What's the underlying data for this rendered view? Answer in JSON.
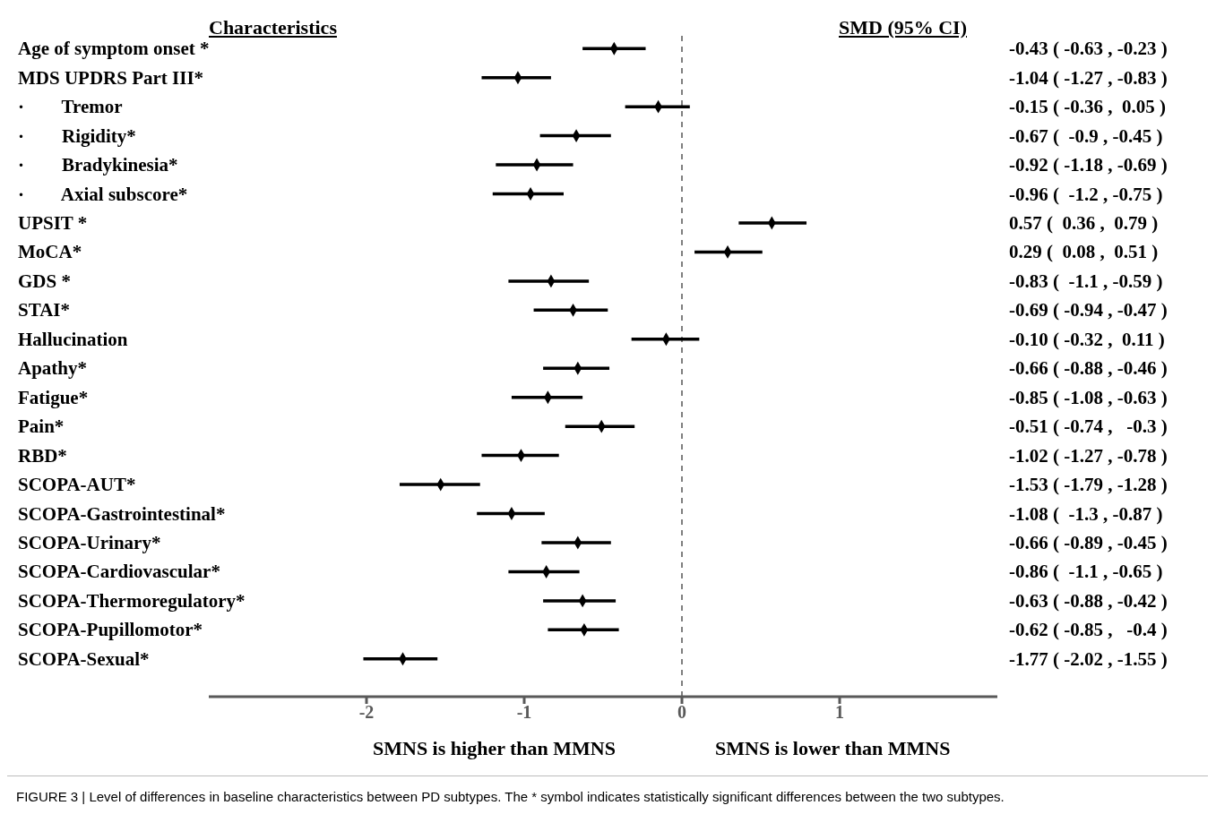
{
  "chart_data": {
    "type": "scatter",
    "orientation": "horizontal",
    "categories": [
      "Age of symptom onset *",
      "MDS UPDRS Part III*",
      "·        Tremor",
      "·        Rigidity*",
      "·        Bradykinesia*",
      "·        Axial subscore*",
      "UPSIT *",
      "MoCA*",
      "GDS *",
      "STAI*",
      "Hallucination",
      "Apathy*",
      "Fatigue*",
      "Pain*",
      "RBD*",
      "SCOPA-AUT*",
      "SCOPA-Gastrointestinal*",
      "SCOPA-Urinary*",
      "SCOPA-Cardiovascular*",
      "SCOPA-Thermoregulatory*",
      "SCOPA-Pupillomotor*",
      "SCOPA-Sexual*"
    ],
    "values": [
      -0.43,
      -1.04,
      -0.15,
      -0.67,
      -0.92,
      -0.96,
      0.57,
      0.29,
      -0.83,
      -0.69,
      -0.1,
      -0.66,
      -0.85,
      -0.51,
      -1.02,
      -1.53,
      -1.08,
      -0.66,
      -0.86,
      -0.63,
      -0.62,
      -1.77
    ],
    "errors": [
      [
        -0.63,
        -0.23
      ],
      [
        -1.27,
        -0.83
      ],
      [
        -0.36,
        0.05
      ],
      [
        -0.9,
        -0.45
      ],
      [
        -1.18,
        -0.69
      ],
      [
        -1.2,
        -0.75
      ],
      [
        0.36,
        0.79
      ],
      [
        0.08,
        0.51
      ],
      [
        -1.1,
        -0.59
      ],
      [
        -0.94,
        -0.47
      ],
      [
        -0.32,
        0.11
      ],
      [
        -0.88,
        -0.46
      ],
      [
        -1.08,
        -0.63
      ],
      [
        -0.74,
        -0.3
      ],
      [
        -1.27,
        -0.78
      ],
      [
        -1.79,
        -1.28
      ],
      [
        -1.3,
        -0.87
      ],
      [
        -0.89,
        -0.45
      ],
      [
        -1.1,
        -0.65
      ],
      [
        -0.88,
        -0.42
      ],
      [
        -0.85,
        -0.4
      ],
      [
        -2.02,
        -1.55
      ]
    ],
    "value_labels": [
      "-0.43 ( -0.63 , -0.23 )",
      "-1.04 ( -1.27 , -0.83 )",
      "-0.15 ( -0.36 ,  0.05 )",
      "-0.67 (  -0.9 , -0.45 )",
      "-0.92 ( -1.18 , -0.69 )",
      "-0.96 (  -1.2 , -0.75 )",
      "0.57 (  0.36 ,  0.79 )",
      "0.29 (  0.08 ,  0.51 )",
      "-0.83 (  -1.1 , -0.59 )",
      "-0.69 ( -0.94 , -0.47 )",
      "-0.10 ( -0.32 ,  0.11 )",
      "-0.66 ( -0.88 , -0.46 )",
      "-0.85 ( -1.08 , -0.63 )",
      "-0.51 ( -0.74 ,   -0.3 )",
      "-1.02 ( -1.27 , -0.78 )",
      "-1.53 ( -1.79 , -1.28 )",
      "-1.08 (  -1.3 , -0.87 )",
      "-0.66 ( -0.89 , -0.45 )",
      "-0.86 (  -1.1 , -0.65 )",
      "-0.63 ( -0.88 , -0.42 )",
      "-0.62 ( -0.85 ,   -0.4 )",
      "-1.77 ( -2.02 , -1.55 )"
    ],
    "color": "#000000",
    "marker": "diamond",
    "xlim": [
      -3,
      2
    ],
    "xticks": [
      -2,
      -1,
      0,
      1
    ],
    "ref_lines": [
      {
        "axis": "x",
        "value": 0,
        "line_style": "dashed",
        "color": "#555555"
      }
    ],
    "grid": false,
    "annotations": [
      "Characteristics",
      "SMD (95% CI)",
      "SMNS is higher than MMNS",
      "SMNS is lower than MMNS",
      "FIGURE 3 | Level of differences in baseline characteristics between PD subtypes. The * symbol indicates statistically significant differences between the two subtypes."
    ]
  }
}
